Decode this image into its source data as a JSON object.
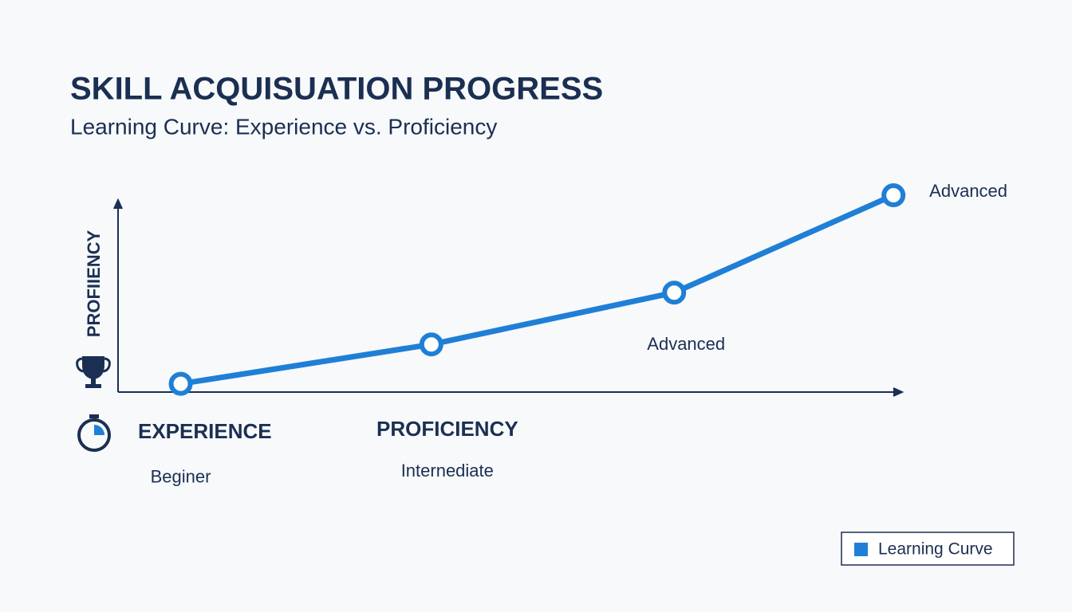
{
  "chart_data": {
    "type": "line",
    "title": "SKILL ACQUISUATION PROGRESS",
    "subtitle": "Learning Curve: Experience vs. Proficiency",
    "y_label": "PROFIIENCY",
    "x_labels": [
      "EXPERIENCE",
      "PROFICIENCY"
    ],
    "x": [
      8,
      40,
      71,
      99
    ],
    "xlim": [
      0,
      100
    ],
    "ylim": [
      0,
      100
    ],
    "series": [
      {
        "name": "Learning Curve",
        "color": "#1f7fd6",
        "values": [
          4,
          23,
          48,
          95
        ]
      }
    ],
    "point_labels": [
      "Beginer",
      "Internediate",
      "Advanced",
      "Advanced"
    ],
    "legend": "lower right"
  }
}
